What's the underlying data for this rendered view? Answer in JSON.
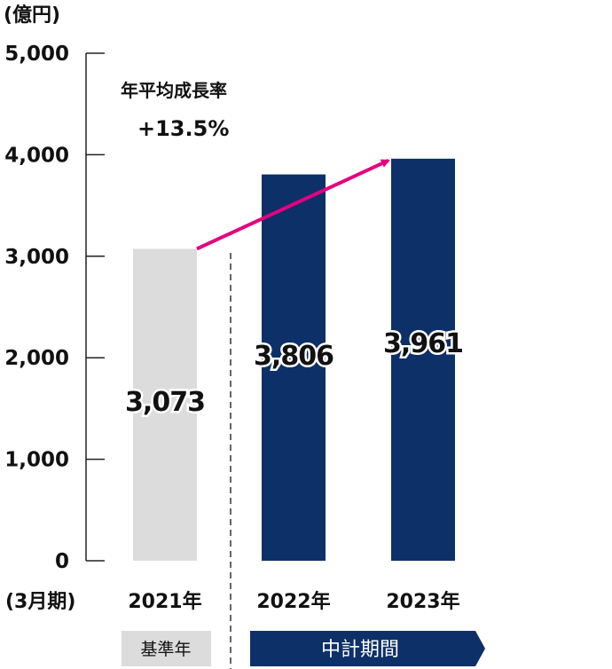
{
  "chart_data": {
    "type": "bar",
    "y_unit": "(億円)",
    "x_unit": "(3月期)",
    "categories": [
      "2021年",
      "2022年",
      "2023年"
    ],
    "values": [
      3073,
      3806,
      3961
    ],
    "value_labels": [
      "3,073",
      "3,806",
      "3,961"
    ],
    "ylim": [
      0,
      5000
    ],
    "yticks": [
      0,
      1000,
      2000,
      3000,
      4000,
      5000
    ],
    "ytick_labels": [
      "0",
      "1,000",
      "2,000",
      "3,000",
      "4,000",
      "5,000"
    ],
    "grid": false,
    "bar_colors": [
      "#dcdcdc",
      "#0e3068",
      "#0e3068"
    ],
    "annotation": {
      "label": "年平均成長率",
      "value": "+13.5%",
      "arrow_color": "#e4007f"
    },
    "periods": [
      {
        "label": "基準年",
        "color": "#dcdcdc",
        "text_color": "#111111"
      },
      {
        "label": "中計期間",
        "color": "#0e3068",
        "text_color": "#ffffff"
      }
    ]
  }
}
